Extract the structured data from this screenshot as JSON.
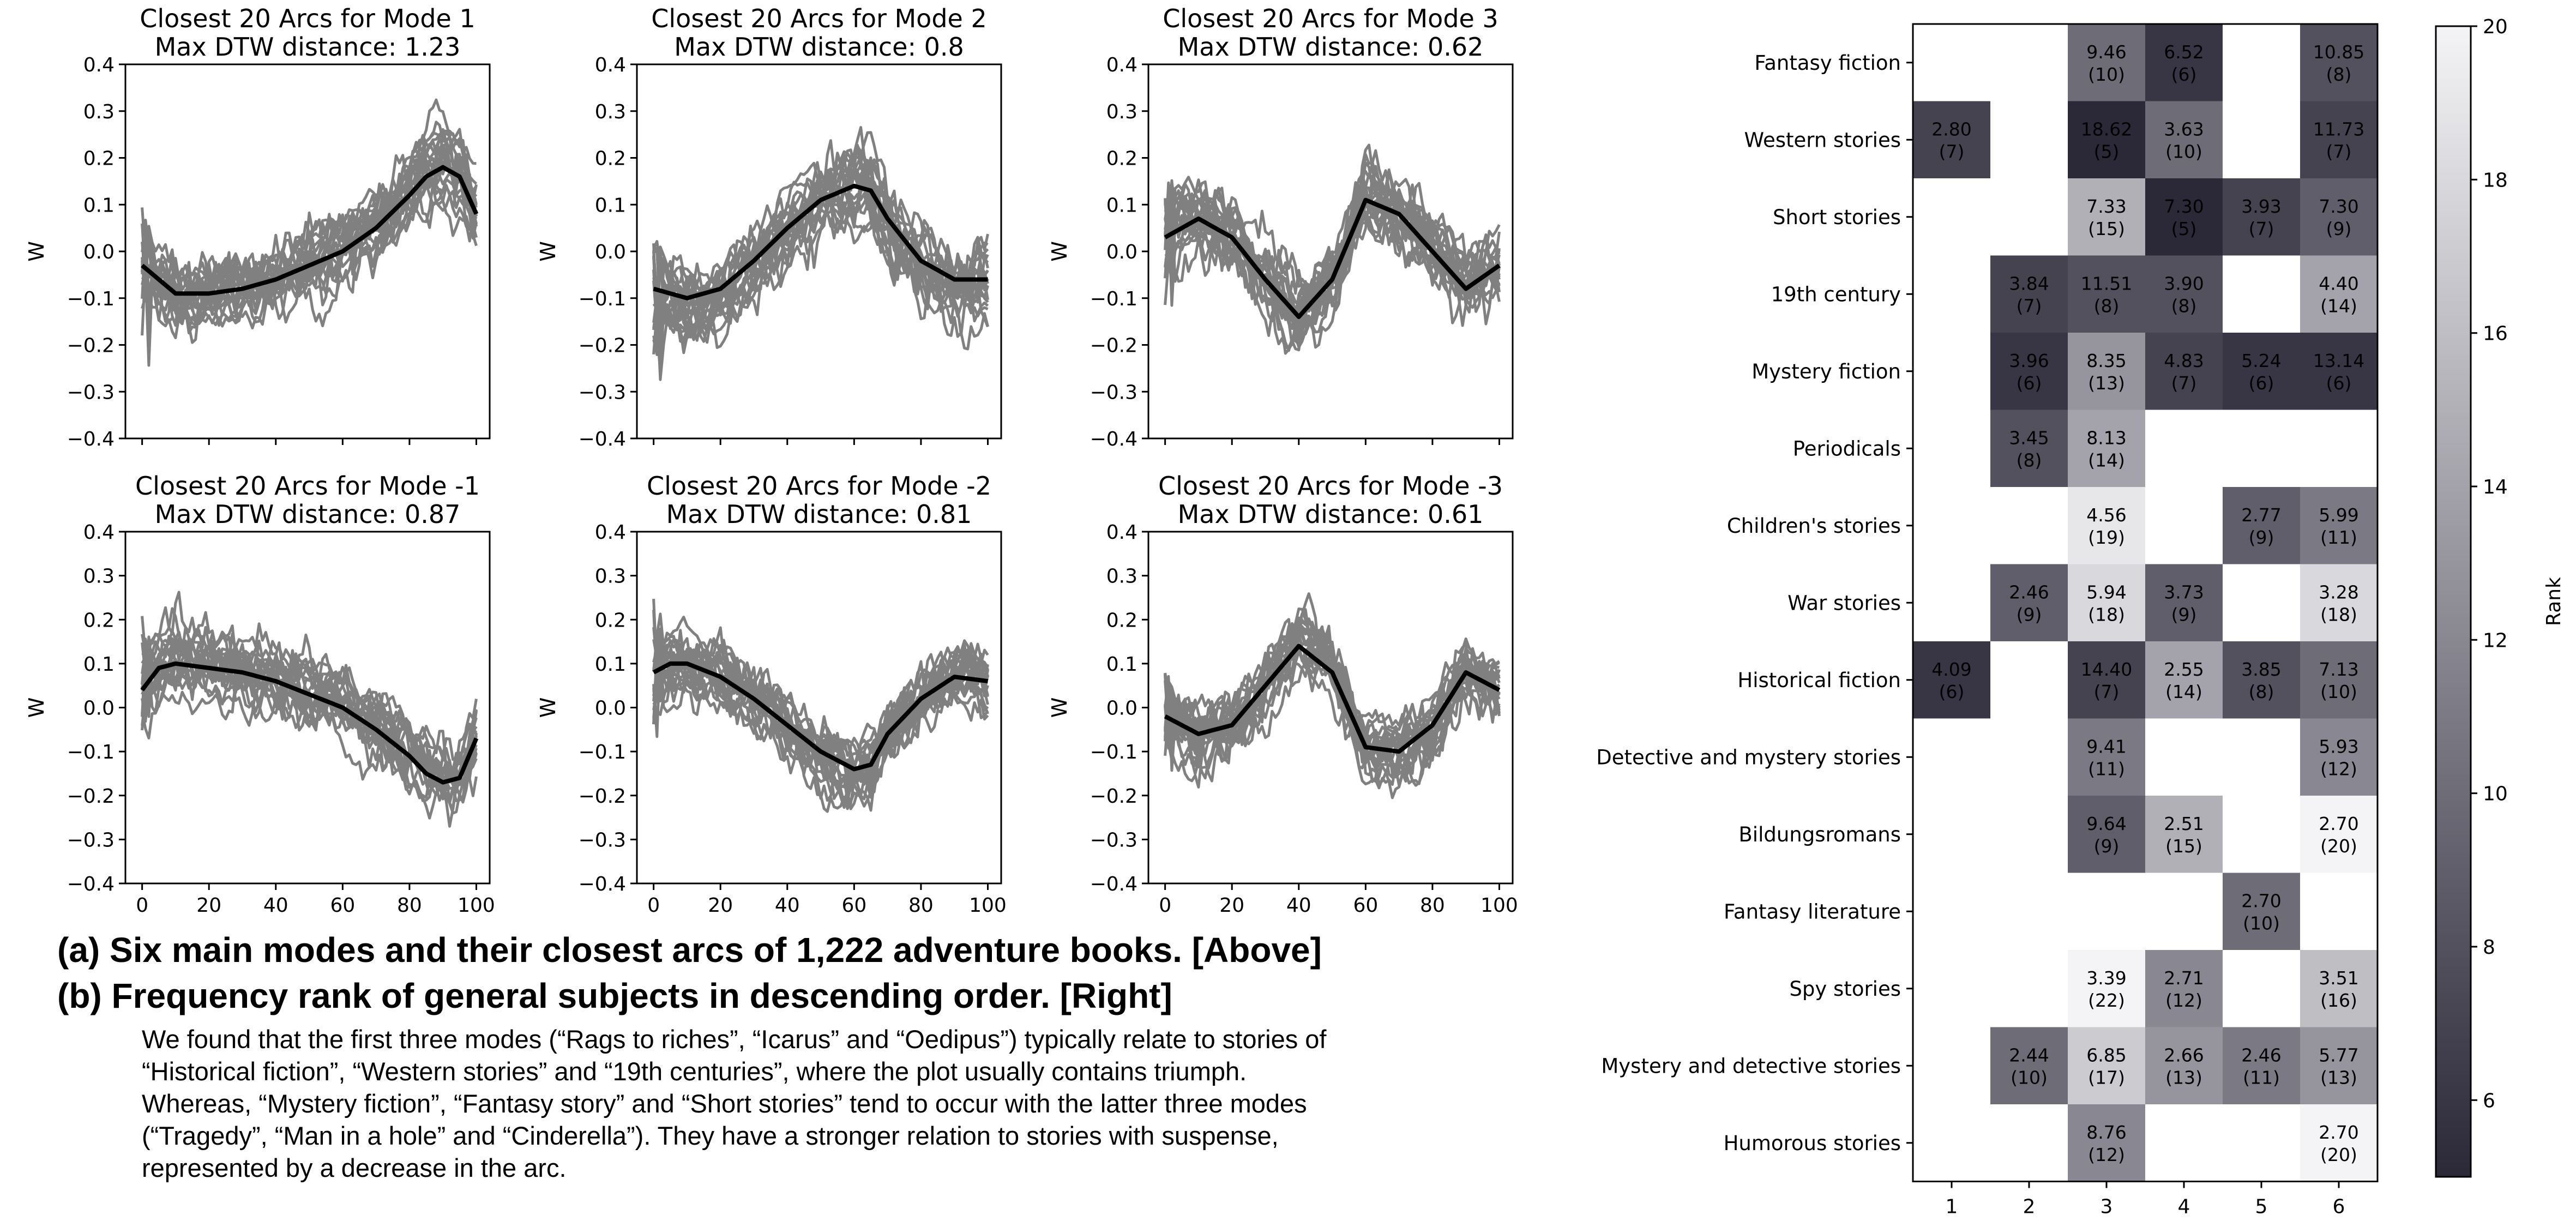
{
  "chart_data": [
    {
      "type": "line",
      "title": "Closest 20 Arcs for Mode 1\nMax DTW distance: 1.23",
      "xlabel": "",
      "ylabel": "W",
      "xlim": [
        -5,
        104
      ],
      "ylim": [
        -0.4,
        0.4
      ],
      "xticks": [
        0,
        20,
        40,
        60,
        80,
        100
      ],
      "yticks": [
        -0.4,
        -0.3,
        -0.2,
        -0.1,
        0.0,
        0.1,
        0.2,
        0.3,
        0.4
      ],
      "series": [
        {
          "x": [
            0,
            10,
            20,
            30,
            40,
            50,
            60,
            70,
            80,
            85,
            90,
            95,
            100
          ],
          "values": [
            -0.03,
            -0.09,
            -0.09,
            -0.08,
            -0.06,
            -0.03,
            0.0,
            0.05,
            0.12,
            0.16,
            0.18,
            0.16,
            0.08
          ],
          "color": "#000000"
        }
      ],
      "grey_arcs": {
        "count": 20,
        "color": "#808080"
      }
    },
    {
      "type": "line",
      "title": "Closest 20 Arcs for Mode 2\nMax DTW distance: 0.8",
      "xlabel": "",
      "ylabel": "W",
      "xlim": [
        -5,
        104
      ],
      "ylim": [
        -0.4,
        0.4
      ],
      "xticks": [
        0,
        20,
        40,
        60,
        80,
        100
      ],
      "yticks": [
        -0.4,
        -0.3,
        -0.2,
        -0.1,
        0.0,
        0.1,
        0.2,
        0.3,
        0.4
      ],
      "series": [
        {
          "x": [
            0,
            10,
            20,
            30,
            40,
            50,
            60,
            65,
            70,
            80,
            90,
            100
          ],
          "values": [
            -0.08,
            -0.1,
            -0.08,
            -0.02,
            0.05,
            0.11,
            0.14,
            0.13,
            0.07,
            -0.02,
            -0.06,
            -0.06
          ],
          "color": "#000000"
        }
      ],
      "grey_arcs": {
        "count": 20,
        "color": "#808080"
      }
    },
    {
      "type": "line",
      "title": "Closest 20 Arcs for Mode 3\nMax DTW distance: 0.62",
      "xlabel": "",
      "ylabel": "W",
      "xlim": [
        -5,
        104
      ],
      "ylim": [
        -0.4,
        0.4
      ],
      "xticks": [
        0,
        20,
        40,
        60,
        80,
        100
      ],
      "yticks": [
        -0.4,
        -0.3,
        -0.2,
        -0.1,
        0.0,
        0.1,
        0.2,
        0.3,
        0.4
      ],
      "series": [
        {
          "x": [
            0,
            10,
            20,
            30,
            40,
            50,
            60,
            70,
            80,
            90,
            100
          ],
          "values": [
            0.03,
            0.07,
            0.03,
            -0.06,
            -0.14,
            -0.06,
            0.11,
            0.08,
            0.0,
            -0.08,
            -0.03
          ],
          "color": "#000000"
        }
      ],
      "grey_arcs": {
        "count": 20,
        "color": "#808080"
      }
    },
    {
      "type": "line",
      "title": "Closest 20 Arcs for Mode -1\nMax DTW distance: 0.87",
      "xlabel": "",
      "ylabel": "W",
      "xlim": [
        -5,
        104
      ],
      "ylim": [
        -0.4,
        0.4
      ],
      "xticks": [
        0,
        20,
        40,
        60,
        80,
        100
      ],
      "yticks": [
        -0.4,
        -0.3,
        -0.2,
        -0.1,
        0.0,
        0.1,
        0.2,
        0.3,
        0.4
      ],
      "series": [
        {
          "x": [
            0,
            5,
            10,
            20,
            30,
            40,
            50,
            60,
            70,
            80,
            85,
            90,
            95,
            100
          ],
          "values": [
            0.04,
            0.09,
            0.1,
            0.09,
            0.08,
            0.06,
            0.03,
            0.0,
            -0.05,
            -0.11,
            -0.15,
            -0.17,
            -0.16,
            -0.07
          ],
          "color": "#000000"
        }
      ],
      "grey_arcs": {
        "count": 20,
        "color": "#808080"
      }
    },
    {
      "type": "line",
      "title": "Closest 20 Arcs for Mode -2\nMax DTW distance: 0.81",
      "xlabel": "",
      "ylabel": "W",
      "xlim": [
        -5,
        104
      ],
      "ylim": [
        -0.4,
        0.4
      ],
      "xticks": [
        0,
        20,
        40,
        60,
        80,
        100
      ],
      "yticks": [
        -0.4,
        -0.3,
        -0.2,
        -0.1,
        0.0,
        0.1,
        0.2,
        0.3,
        0.4
      ],
      "series": [
        {
          "x": [
            0,
            5,
            10,
            20,
            30,
            40,
            50,
            60,
            65,
            70,
            80,
            90,
            100
          ],
          "values": [
            0.08,
            0.1,
            0.1,
            0.07,
            0.02,
            -0.04,
            -0.1,
            -0.14,
            -0.13,
            -0.06,
            0.02,
            0.07,
            0.06
          ],
          "color": "#000000"
        }
      ],
      "grey_arcs": {
        "count": 20,
        "color": "#808080"
      }
    },
    {
      "type": "line",
      "title": "Closest 20 Arcs for Mode -3\nMax DTW distance: 0.61",
      "xlabel": "",
      "ylabel": "W",
      "xlim": [
        -5,
        104
      ],
      "ylim": [
        -0.4,
        0.4
      ],
      "xticks": [
        0,
        20,
        40,
        60,
        80,
        100
      ],
      "yticks": [
        -0.4,
        -0.3,
        -0.2,
        -0.1,
        0.0,
        0.1,
        0.2,
        0.3,
        0.4
      ],
      "series": [
        {
          "x": [
            0,
            10,
            20,
            30,
            40,
            50,
            60,
            70,
            80,
            90,
            100
          ],
          "values": [
            -0.02,
            -0.06,
            -0.04,
            0.05,
            0.14,
            0.08,
            -0.09,
            -0.1,
            -0.04,
            0.08,
            0.04
          ],
          "color": "#000000"
        }
      ],
      "grey_arcs": {
        "count": 20,
        "color": "#808080"
      }
    },
    {
      "type": "heatmap",
      "x_categories": [
        "1",
        "2",
        "3",
        "4",
        "5",
        "6"
      ],
      "y_categories": [
        "Fantasy fiction",
        "Western stories",
        "Short stories",
        "19th century",
        "Mystery fiction",
        "Periodicals",
        "Children's stories",
        "War stories",
        "Historical fiction",
        "Detective and mystery stories",
        "Bildungsromans",
        "Fantasy literature",
        "Spy stories",
        "Mystery and detective stories",
        "Humorous stories"
      ],
      "cells": [
        {
          "row": 0,
          "col": 3,
          "value": "9.46",
          "rank": 10
        },
        {
          "row": 0,
          "col": 4,
          "value": "6.52",
          "rank": 6
        },
        {
          "row": 0,
          "col": 6,
          "value": "10.85",
          "rank": 8
        },
        {
          "row": 1,
          "col": 1,
          "value": "2.80",
          "rank": 7
        },
        {
          "row": 1,
          "col": 3,
          "value": "18.62",
          "rank": 5
        },
        {
          "row": 1,
          "col": 4,
          "value": "3.63",
          "rank": 10
        },
        {
          "row": 1,
          "col": 6,
          "value": "11.73",
          "rank": 7
        },
        {
          "row": 2,
          "col": 3,
          "value": "7.33",
          "rank": 15
        },
        {
          "row": 2,
          "col": 4,
          "value": "7.30",
          "rank": 5
        },
        {
          "row": 2,
          "col": 5,
          "value": "3.93",
          "rank": 7
        },
        {
          "row": 2,
          "col": 6,
          "value": "7.30",
          "rank": 9
        },
        {
          "row": 3,
          "col": 2,
          "value": "3.84",
          "rank": 7
        },
        {
          "row": 3,
          "col": 3,
          "value": "11.51",
          "rank": 8
        },
        {
          "row": 3,
          "col": 4,
          "value": "3.90",
          "rank": 8
        },
        {
          "row": 3,
          "col": 6,
          "value": "4.40",
          "rank": 14
        },
        {
          "row": 4,
          "col": 2,
          "value": "3.96",
          "rank": 6
        },
        {
          "row": 4,
          "col": 3,
          "value": "8.35",
          "rank": 13
        },
        {
          "row": 4,
          "col": 4,
          "value": "4.83",
          "rank": 7
        },
        {
          "row": 4,
          "col": 5,
          "value": "5.24",
          "rank": 6
        },
        {
          "row": 4,
          "col": 6,
          "value": "13.14",
          "rank": 6
        },
        {
          "row": 5,
          "col": 2,
          "value": "3.45",
          "rank": 8
        },
        {
          "row": 5,
          "col": 3,
          "value": "8.13",
          "rank": 14
        },
        {
          "row": 6,
          "col": 3,
          "value": "4.56",
          "rank": 19
        },
        {
          "row": 6,
          "col": 5,
          "value": "2.77",
          "rank": 9
        },
        {
          "row": 6,
          "col": 6,
          "value": "5.99",
          "rank": 11
        },
        {
          "row": 7,
          "col": 2,
          "value": "2.46",
          "rank": 9
        },
        {
          "row": 7,
          "col": 3,
          "value": "5.94",
          "rank": 18
        },
        {
          "row": 7,
          "col": 4,
          "value": "3.73",
          "rank": 9
        },
        {
          "row": 7,
          "col": 6,
          "value": "3.28",
          "rank": 18
        },
        {
          "row": 8,
          "col": 1,
          "value": "4.09",
          "rank": 6
        },
        {
          "row": 8,
          "col": 3,
          "value": "14.40",
          "rank": 7
        },
        {
          "row": 8,
          "col": 4,
          "value": "2.55",
          "rank": 14
        },
        {
          "row": 8,
          "col": 5,
          "value": "3.85",
          "rank": 8
        },
        {
          "row": 8,
          "col": 6,
          "value": "7.13",
          "rank": 10
        },
        {
          "row": 9,
          "col": 3,
          "value": "9.41",
          "rank": 11
        },
        {
          "row": 9,
          "col": 6,
          "value": "5.93",
          "rank": 12
        },
        {
          "row": 10,
          "col": 3,
          "value": "9.64",
          "rank": 9
        },
        {
          "row": 10,
          "col": 4,
          "value": "2.51",
          "rank": 15
        },
        {
          "row": 10,
          "col": 6,
          "value": "2.70",
          "rank": 20
        },
        {
          "row": 11,
          "col": 5,
          "value": "2.70",
          "rank": 10
        },
        {
          "row": 12,
          "col": 3,
          "value": "3.39",
          "rank": 22
        },
        {
          "row": 12,
          "col": 4,
          "value": "2.71",
          "rank": 12
        },
        {
          "row": 12,
          "col": 6,
          "value": "3.51",
          "rank": 16
        },
        {
          "row": 13,
          "col": 2,
          "value": "2.44",
          "rank": 10
        },
        {
          "row": 13,
          "col": 3,
          "value": "6.85",
          "rank": 17
        },
        {
          "row": 13,
          "col": 4,
          "value": "2.66",
          "rank": 13
        },
        {
          "row": 13,
          "col": 5,
          "value": "2.46",
          "rank": 11
        },
        {
          "row": 13,
          "col": 6,
          "value": "5.77",
          "rank": 13
        },
        {
          "row": 14,
          "col": 3,
          "value": "8.76",
          "rank": 12
        },
        {
          "row": 14,
          "col": 6,
          "value": "2.70",
          "rank": 20
        }
      ],
      "colorbar": {
        "label": "Rank",
        "range": [
          5,
          20
        ],
        "ticks": [
          6,
          8,
          10,
          12,
          14,
          16,
          18,
          20
        ],
        "color_low": "#2b2838",
        "color_high": "#f4f4f6"
      }
    }
  ],
  "captions": {
    "a": "(a)  Six main modes and their closest arcs of 1,222 adventure books. [Above]",
    "b": "(b)  Frequency rank of general subjects in descending order. [Right]",
    "body": [
      "We found that the first three modes (“Rags to riches”, “Icarus” and “Oedipus”) typically relate to stories of",
      "“Historical fiction”, “Western stories” and “19th centuries”, where the plot usually contains triumph.",
      "Whereas, “Mystery fiction”, “Fantasy story” and “Short stories” tend to occur with the latter three modes",
      "(“Tragedy”, “Man in a hole” and “Cinderella”). They have a stronger relation to stories with suspense,",
      "represented by a decrease in the arc."
    ]
  }
}
